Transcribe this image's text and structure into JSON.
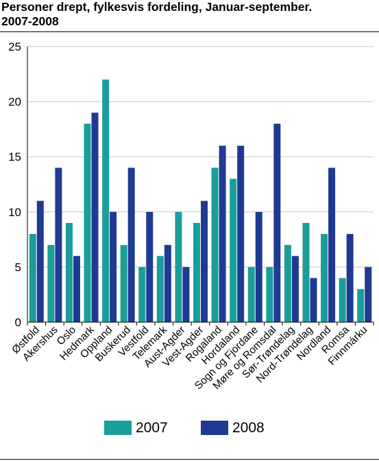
{
  "title_line1": "Personer drept, fylkesvis fordeling, Januar-september.",
  "title_line2": "2007-2008",
  "chart_data": {
    "type": "bar",
    "title": "Personer drept, fylkesvis fordeling, Januar-september. 2007-2008",
    "xlabel": "",
    "ylabel": "",
    "ylim": [
      0,
      25
    ],
    "yticks": [
      0,
      5,
      10,
      15,
      20,
      25
    ],
    "grid": true,
    "legend_position": "bottom",
    "categories": [
      "Østfold",
      "Akershus",
      "Oslo",
      "Hedmark",
      "Oppland",
      "Buskerud",
      "Vestfold",
      "Telemark",
      "Aust-Agder",
      "Vest-Agder",
      "Rogaland",
      "Hordaland",
      "Sogn og Fjordane",
      "Møre og Romsdal",
      "Sør-Trøndelag",
      "Nord-Trøndelag",
      "Nordland",
      "Romsa",
      "Finnmárku"
    ],
    "series": [
      {
        "name": "2007",
        "color": "#1a9e9a",
        "values": [
          8,
          7,
          9,
          18,
          22,
          7,
          5,
          6,
          10,
          9,
          14,
          13,
          5,
          5,
          7,
          9,
          8,
          4,
          3
        ]
      },
      {
        "name": "2008",
        "color": "#1f3a93",
        "values": [
          11,
          14,
          6,
          19,
          10,
          14,
          10,
          7,
          5,
          11,
          16,
          16,
          10,
          18,
          6,
          4,
          14,
          8,
          5
        ]
      }
    ]
  }
}
